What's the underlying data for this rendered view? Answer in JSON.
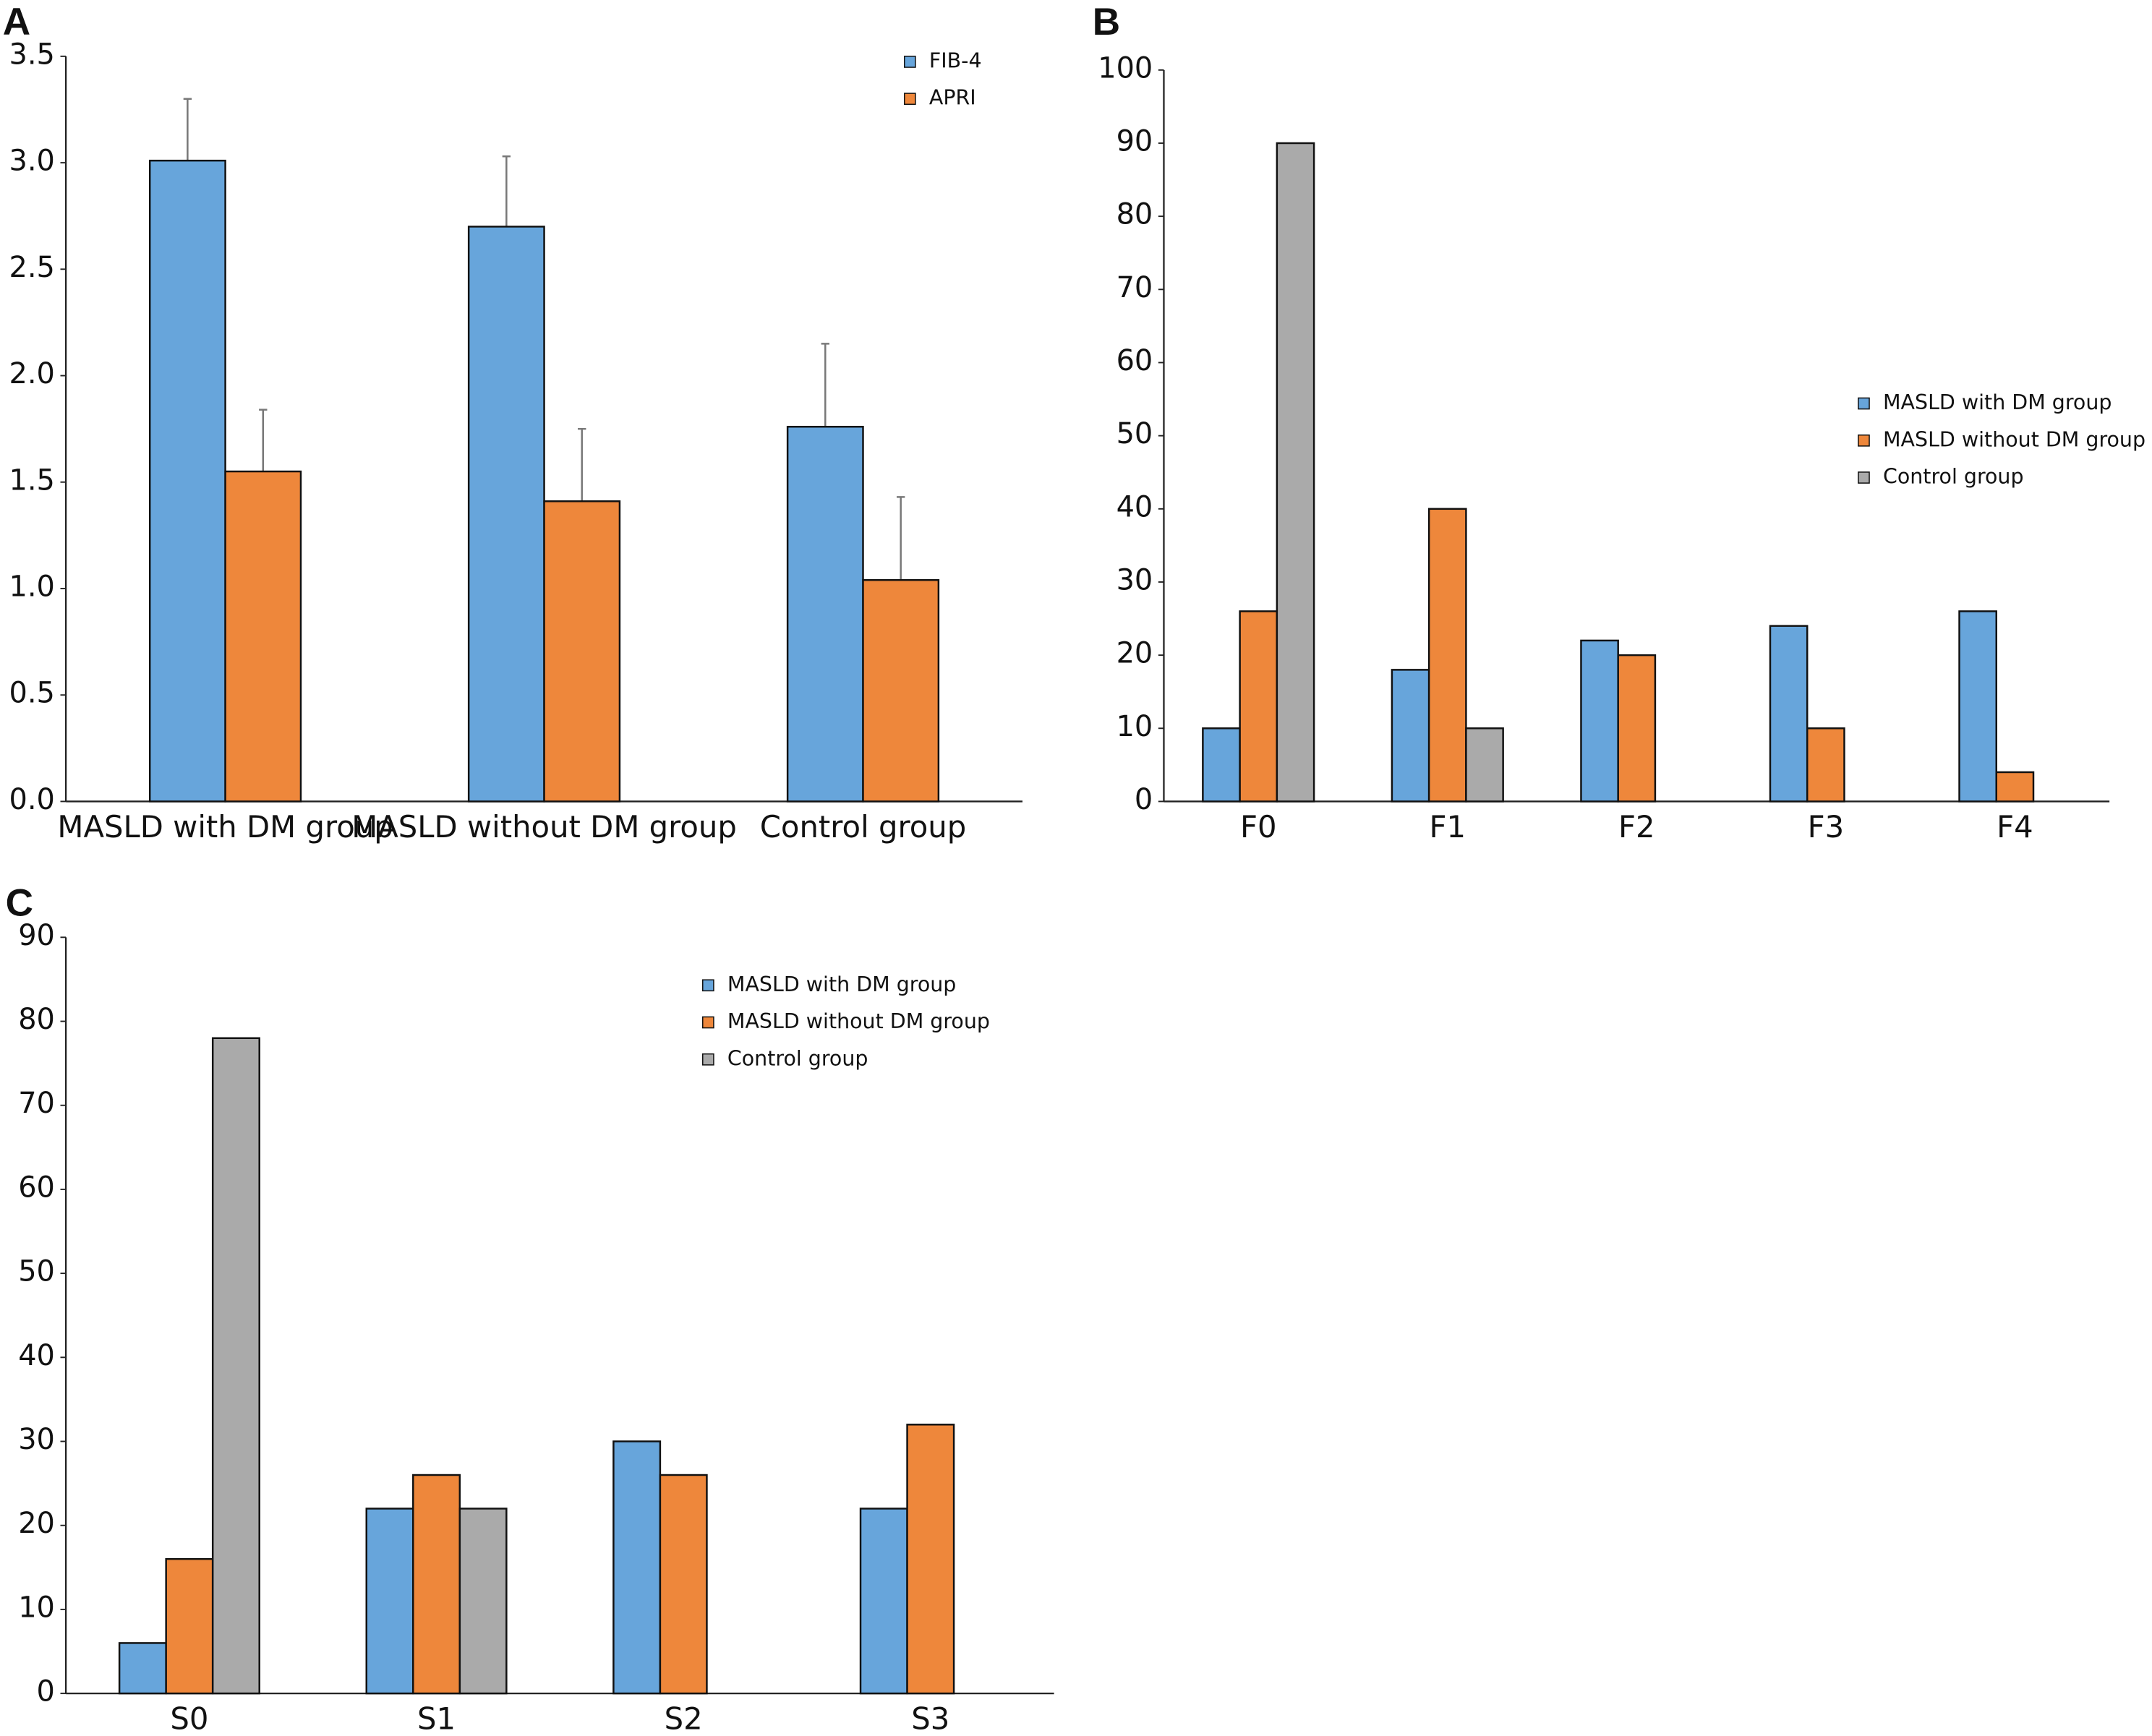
{
  "chart_data": [
    {
      "type": "bar",
      "label": "A",
      "categories": [
        "MASLD with DM group",
        "MASLD without DM group",
        "Control group"
      ],
      "series": [
        {
          "name": "FIB-4",
          "color": "#67a5db",
          "values": [
            3.01,
            2.7,
            1.76
          ],
          "errors": [
            0.29,
            0.33,
            0.39
          ]
        },
        {
          "name": "APRI",
          "color": "#ee873b",
          "values": [
            1.55,
            1.41,
            1.04
          ],
          "errors": [
            0.29,
            0.34,
            0.39
          ]
        }
      ],
      "ylim": [
        0,
        3.5
      ],
      "yticks": [
        {
          "value": 0,
          "label": "0.0"
        },
        0.5,
        {
          "value": 1,
          "label": "1.0"
        },
        1.5,
        {
          "value": 2,
          "label": "2.0"
        },
        2.5,
        {
          "value": 3,
          "label": "3.0"
        },
        3.5
      ],
      "grid": false,
      "legend": "upper right"
    },
    {
      "type": "bar",
      "label": "B",
      "categories": [
        "F0",
        "F1",
        "F2",
        "F3",
        "F4"
      ],
      "series": [
        {
          "name": "MASLD with DM group",
          "color": "#67a5db",
          "values": [
            10,
            18,
            22,
            24,
            26
          ]
        },
        {
          "name": "MASLD without DM group",
          "color": "#ee873b",
          "values": [
            26,
            40,
            20,
            10,
            4
          ]
        },
        {
          "name": "Control group",
          "color": "#aaaaaa",
          "values": [
            90,
            10,
            null,
            null,
            null
          ]
        }
      ],
      "ylim": [
        0,
        100
      ],
      "yticks": [
        0,
        10,
        20,
        30,
        40,
        50,
        60,
        70,
        80,
        90,
        100
      ],
      "grid": false,
      "legend": "right"
    },
    {
      "type": "bar",
      "label": "C",
      "categories": [
        "S0",
        "S1",
        "S2",
        "S3"
      ],
      "series": [
        {
          "name": "MASLD with DM group",
          "color": "#67a5db",
          "values": [
            6,
            22,
            30,
            22
          ]
        },
        {
          "name": "MASLD without DM group",
          "color": "#ee873b",
          "values": [
            16,
            26,
            26,
            32
          ]
        },
        {
          "name": "Control group",
          "color": "#aaaaaa",
          "values": [
            78,
            22,
            null,
            null
          ]
        }
      ],
      "ylim": [
        0,
        90
      ],
      "yticks": [
        0,
        10,
        20,
        30,
        40,
        50,
        60,
        70,
        80,
        90
      ],
      "grid": false,
      "legend": "upper right"
    }
  ]
}
